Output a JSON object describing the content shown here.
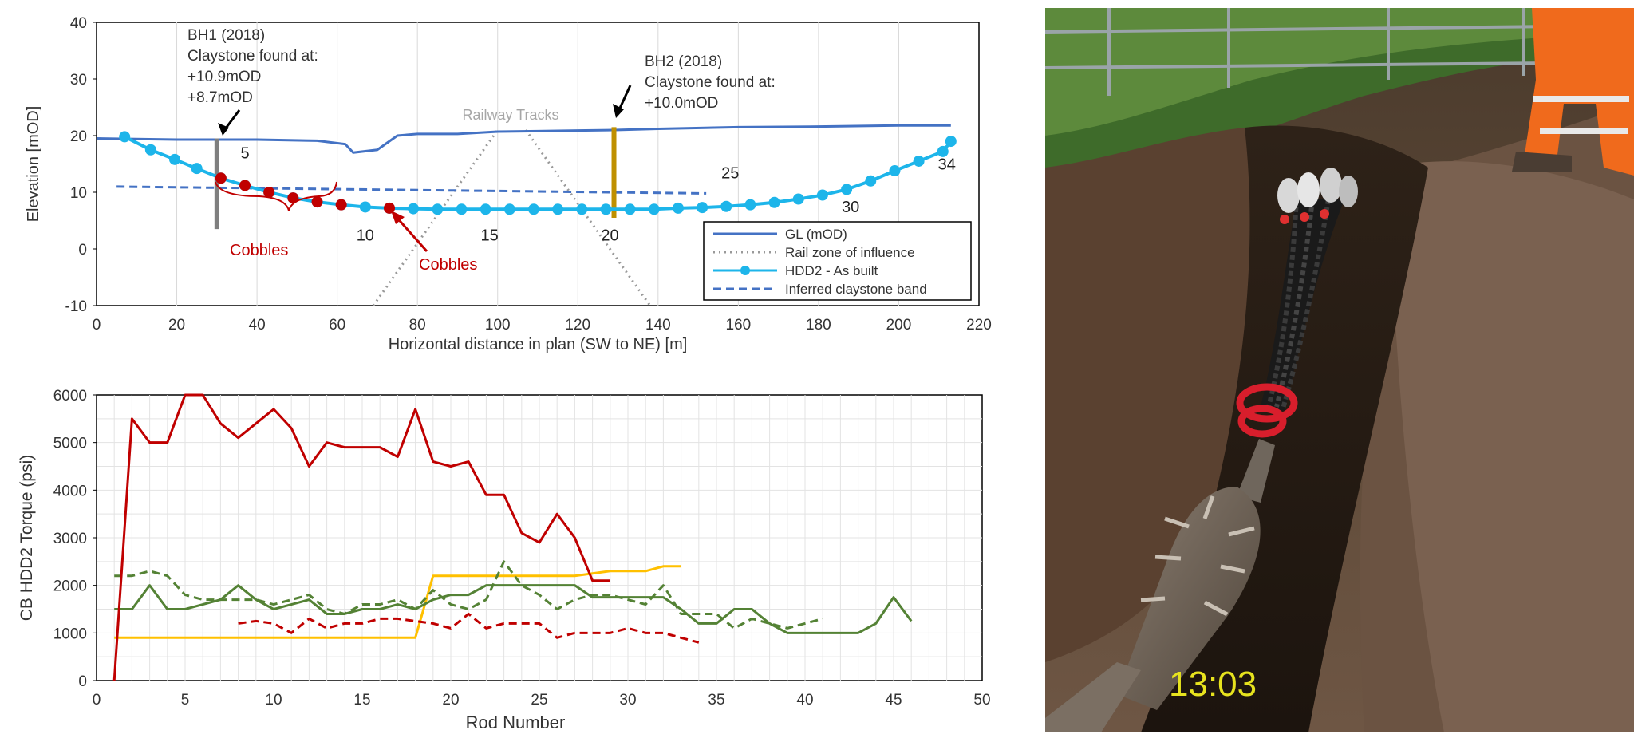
{
  "chart_data": [
    {
      "type": "line",
      "ylabel": "Elevation [mOD]",
      "xlabel": "Horizontal distance in plan (SW to NE) [m]",
      "xlim": [
        0,
        220
      ],
      "ylim": [
        -10,
        40
      ],
      "x_ticks": [
        0,
        20,
        40,
        60,
        80,
        100,
        120,
        140,
        160,
        180,
        200,
        220
      ],
      "y_ticks": [
        -10,
        0,
        10,
        20,
        30,
        40
      ],
      "grid": "vertical",
      "legend_position": "bottom-right",
      "series": [
        {
          "name": "GL (mOD)",
          "style": "solid",
          "color": "#4472c4",
          "x": [
            0,
            20,
            40,
            55,
            62,
            64,
            70,
            75,
            80,
            90,
            100,
            110,
            120,
            130,
            140,
            160,
            180,
            200,
            213
          ],
          "y": [
            19.5,
            19.3,
            19.3,
            19.1,
            18.5,
            17.0,
            17.5,
            20.0,
            20.3,
            20.3,
            20.7,
            20.8,
            20.9,
            21.0,
            21.2,
            21.5,
            21.6,
            21.8,
            21.8
          ]
        },
        {
          "name": "Rail zone of influence",
          "style": "dotted",
          "color": "#999999",
          "segments": [
            [
              [
                69,
                -10
              ],
              [
                100,
                21
              ]
            ],
            [
              [
                107,
                21
              ],
              [
                138,
                -10
              ]
            ]
          ]
        },
        {
          "name": "HDD2 - As built",
          "style": "solid-marker",
          "color": "#1db5ea",
          "x": [
            7,
            13.5,
            19.5,
            25,
            31,
            37,
            43,
            49,
            55,
            61,
            67,
            73,
            79,
            85,
            91,
            97,
            103,
            109,
            115,
            121,
            127,
            133,
            139,
            145,
            151,
            157,
            163,
            169,
            175,
            181,
            187,
            193,
            199,
            205,
            211,
            213
          ],
          "y": [
            19.8,
            17.5,
            15.8,
            14.2,
            12.5,
            11.2,
            10.0,
            9.0,
            8.3,
            7.8,
            7.4,
            7.2,
            7.1,
            7.0,
            7.0,
            7.0,
            7.0,
            7.0,
            7.0,
            7.0,
            7.0,
            7.0,
            7.0,
            7.2,
            7.3,
            7.5,
            7.8,
            8.2,
            8.8,
            9.5,
            10.5,
            12.0,
            13.8,
            15.5,
            17.2,
            19.0
          ]
        },
        {
          "name": "Inferred claystone band",
          "style": "dashed",
          "color": "#4472c4",
          "x": [
            5,
            152
          ],
          "y": [
            11.0,
            9.8
          ]
        }
      ],
      "cobbles_points": {
        "color": "#c00000",
        "x": [
          31,
          37,
          43,
          49,
          55,
          61,
          73
        ],
        "y": [
          12.5,
          11.2,
          10.0,
          9.0,
          8.3,
          7.8,
          7.2
        ]
      },
      "boreholes": [
        {
          "x": 30,
          "y_top": 19.5,
          "y_bottom": 3.5,
          "color": "#7f7f7f"
        },
        {
          "x": 129,
          "y_top": 21.5,
          "y_bottom": 5.5,
          "color": "#bf9000"
        }
      ],
      "rod_labels": [
        {
          "text": "5",
          "x": 37,
          "y": 16
        },
        {
          "text": "10",
          "x": 67,
          "y": 1.5
        },
        {
          "text": "15",
          "x": 98,
          "y": 1.5
        },
        {
          "text": "20",
          "x": 128,
          "y": 1.5
        },
        {
          "text": "25",
          "x": 158,
          "y": 12.5
        },
        {
          "text": "30",
          "x": 188,
          "y": 6.5
        },
        {
          "text": "34",
          "x": 212,
          "y": 14
        }
      ],
      "annotations": {
        "bh1": [
          "BH1 (2018)",
          "Claystone found at:",
          "+10.9mOD",
          "+8.7mOD"
        ],
        "bh2": [
          "BH2 (2018)",
          "Claystone found at:",
          "+10.0mOD"
        ],
        "railway": "Railway Tracks",
        "cobbles_1": "Cobbles",
        "cobbles_2": "Cobbles"
      }
    },
    {
      "type": "line",
      "ylabel": "CB HDD2 Torque (psi)",
      "xlabel": "Rod Number",
      "xlim": [
        0,
        50
      ],
      "ylim": [
        0,
        6000
      ],
      "x_ticks": [
        0,
        5,
        10,
        15,
        20,
        25,
        30,
        35,
        40,
        45,
        50
      ],
      "y_ticks": [
        0,
        1000,
        2000,
        3000,
        4000,
        5000,
        6000
      ],
      "grid": "both",
      "series": [
        {
          "style": "solid",
          "color": "#c00000",
          "x": [
            1,
            2,
            3,
            4,
            5,
            6,
            7,
            8,
            9,
            10,
            11,
            12,
            13,
            14,
            15,
            16,
            17,
            18,
            19,
            20,
            21,
            22,
            23,
            24,
            25,
            26,
            27,
            28,
            29
          ],
          "y": [
            0,
            5500,
            5000,
            5000,
            6000,
            6000,
            5400,
            5100,
            5400,
            5700,
            5300,
            4500,
            5000,
            4900,
            4900,
            4900,
            4700,
            5700,
            4600,
            4500,
            4600,
            3900,
            3900,
            3100,
            2900,
            3500,
            3000,
            2100,
            2100
          ]
        },
        {
          "style": "dashed",
          "color": "#c00000",
          "x": [
            8,
            9,
            10,
            11,
            12,
            13,
            14,
            15,
            16,
            17,
            18,
            19,
            20,
            21,
            22,
            23,
            24,
            25,
            26,
            27,
            28,
            29,
            30,
            31,
            32,
            33,
            34
          ],
          "y": [
            1200,
            1250,
            1200,
            1000,
            1300,
            1100,
            1200,
            1200,
            1300,
            1300,
            1250,
            1200,
            1100,
            1400,
            1100,
            1200,
            1200,
            1200,
            900,
            1000,
            1000,
            1000,
            1100,
            1000,
            1000,
            900,
            800
          ]
        },
        {
          "style": "solid",
          "color": "#548235",
          "x": [
            1,
            2,
            3,
            4,
            5,
            6,
            7,
            8,
            9,
            10,
            11,
            12,
            13,
            14,
            15,
            16,
            17,
            18,
            19,
            20,
            21,
            22,
            23,
            24,
            25,
            26,
            27,
            28,
            29,
            30,
            31,
            32,
            33,
            34,
            35,
            36,
            37,
            38,
            39,
            40,
            41,
            42,
            43,
            44,
            45,
            46
          ],
          "y": [
            1500,
            1500,
            2000,
            1500,
            1500,
            1600,
            1700,
            2000,
            1700,
            1500,
            1600,
            1700,
            1400,
            1400,
            1500,
            1500,
            1600,
            1500,
            1700,
            1800,
            1800,
            2000,
            2000,
            2000,
            2000,
            2000,
            2000,
            1750,
            1750,
            1750,
            1750,
            1750,
            1500,
            1200,
            1200,
            1500,
            1500,
            1200,
            1000,
            1000,
            1000,
            1000,
            1000,
            1200,
            1750,
            1250
          ]
        },
        {
          "style": "dashed",
          "color": "#548235",
          "x": [
            1,
            2,
            3,
            4,
            5,
            6,
            7,
            8,
            9,
            10,
            11,
            12,
            13,
            14,
            15,
            16,
            17,
            18,
            19,
            20,
            21,
            22,
            23,
            24,
            25,
            26,
            27,
            28,
            29,
            30,
            31,
            32,
            33,
            34,
            35,
            36,
            37,
            38,
            39,
            40,
            41
          ],
          "y": [
            2200,
            2200,
            2300,
            2200,
            1800,
            1700,
            1700,
            1700,
            1700,
            1600,
            1700,
            1800,
            1500,
            1400,
            1600,
            1600,
            1700,
            1500,
            1900,
            1600,
            1500,
            1700,
            2500,
            2000,
            1800,
            1500,
            1700,
            1800,
            1800,
            1700,
            1600,
            2000,
            1400,
            1400,
            1400,
            1100,
            1300,
            1200,
            1100,
            1200,
            1300
          ]
        },
        {
          "style": "solid",
          "color": "#ffc000",
          "x": [
            1,
            18,
            19,
            27,
            28,
            29,
            30,
            31,
            32,
            33
          ],
          "y": [
            900,
            900,
            2200,
            2200,
            2250,
            2300,
            2300,
            2300,
            2400,
            2400
          ]
        }
      ]
    }
  ],
  "photo": {
    "timestamp": "13:03"
  }
}
